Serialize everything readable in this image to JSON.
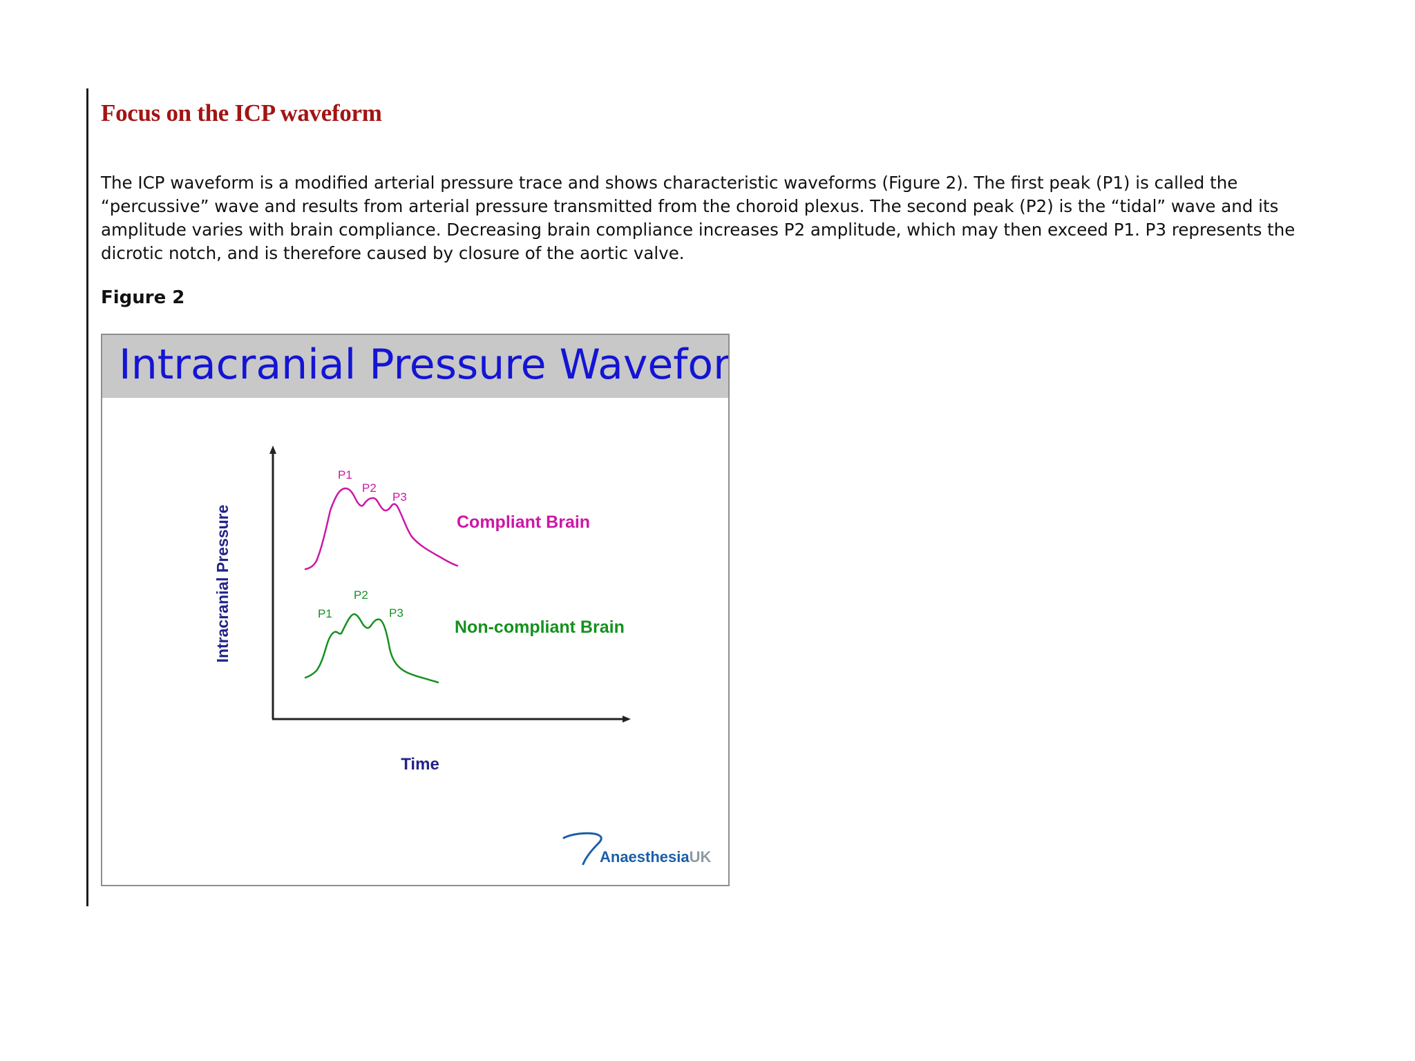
{
  "section": {
    "heading": "Focus on the ICP waveform",
    "paragraph": "The ICP waveform is a modified arterial pressure trace and shows characteristic waveforms (Figure 2). The first peak (P1) is called the “percussive” wave and results from arterial pressure transmitted from the choroid plexus. The second peak (P2) is the “tidal” wave and its amplitude varies with brain compliance. Decreasing brain compliance increases P2 amplitude, which may then exceed P1. P3 represents the dicrotic notch, and is therefore caused by closure of the aortic valve.",
    "figure_label": "Figure 2"
  },
  "figure": {
    "title": "Intracranial Pressure Waveform",
    "y_axis_label": "Intracranial Pressure",
    "x_axis_label": "Time",
    "compliant": {
      "label": "Compliant Brain",
      "color": "#cc17a6",
      "p1": "P1",
      "p2": "P2",
      "p3": "P3"
    },
    "noncompliant": {
      "label": "Non-compliant Brain",
      "color": "#14911e",
      "p1": "P1",
      "p2": "P2",
      "p3": "P3"
    },
    "logo": {
      "name": "Anaesthesia",
      "suffix": "UK"
    },
    "axis_color": "#222222",
    "label_color": "#22228a"
  }
}
